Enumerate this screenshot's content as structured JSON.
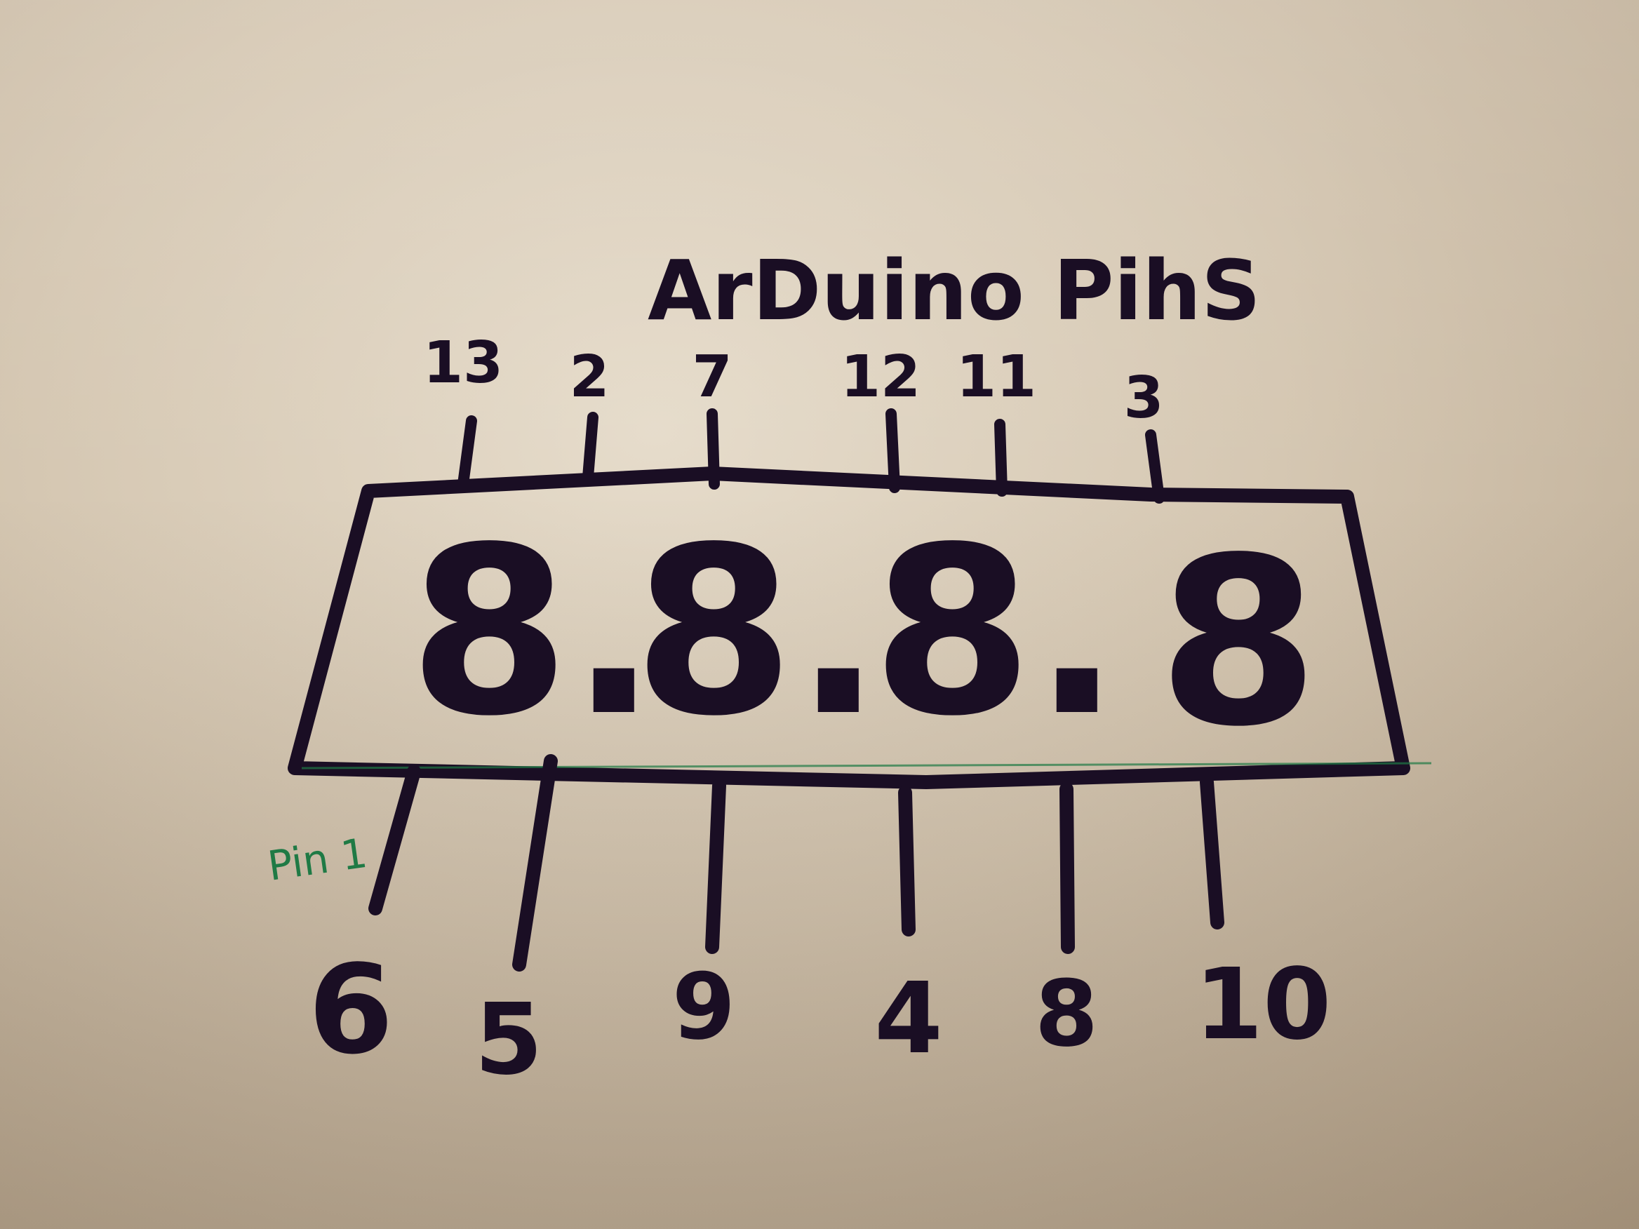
{
  "title": "ArDuino PihS",
  "display_digits": [
    "8.",
    "8.",
    "8.",
    "8"
  ],
  "top_pins": [
    "13",
    "2",
    "7",
    "12",
    "11",
    "3"
  ],
  "bottom_pins": [
    "6",
    "5",
    "9",
    "4",
    "8",
    "10"
  ],
  "pin1_note": "Pin 1",
  "colors": {
    "ink": "#1a0e24",
    "note": "#1f7a45",
    "paper": "#e6dccb"
  }
}
